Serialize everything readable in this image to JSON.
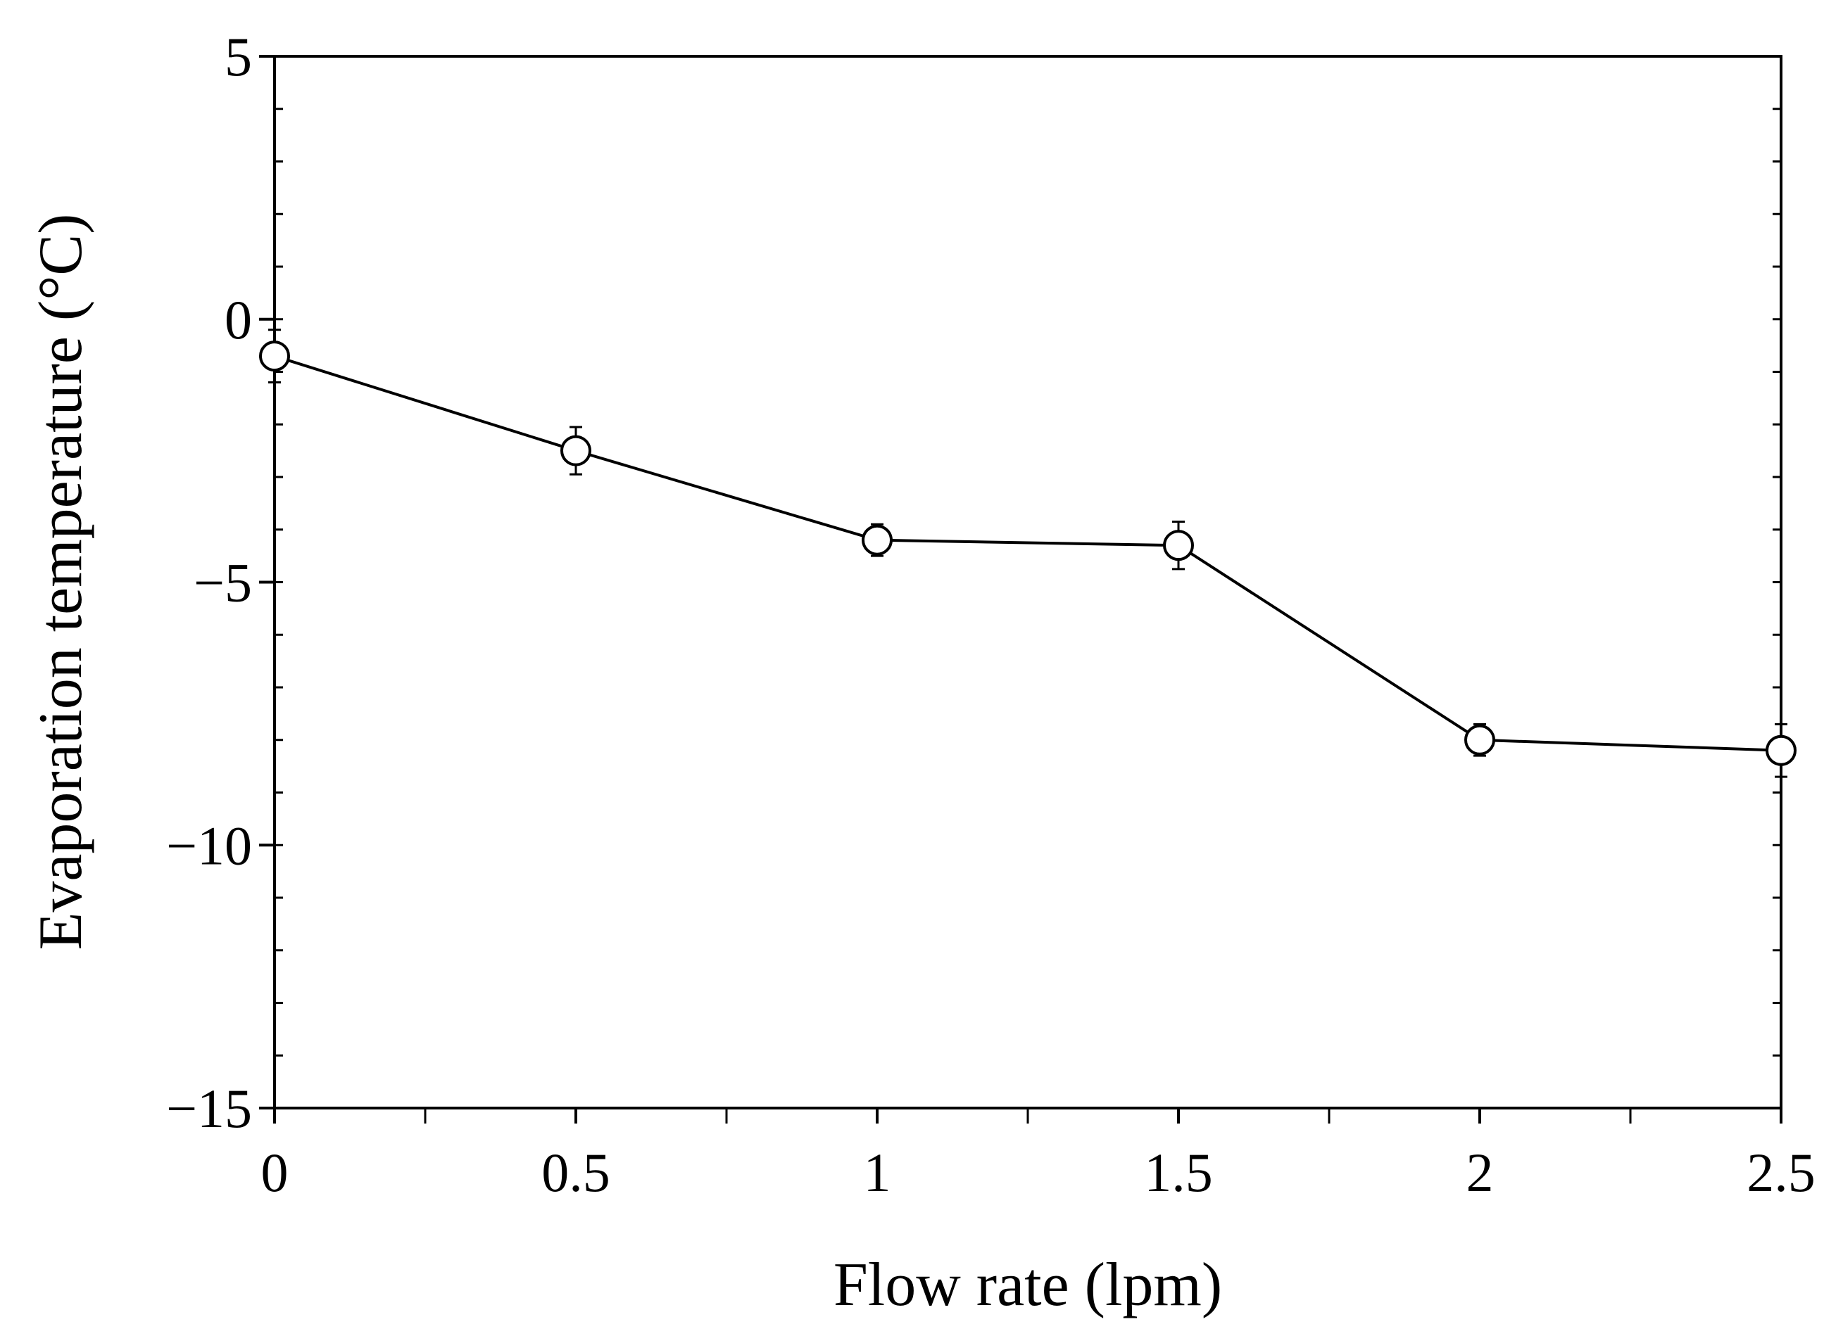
{
  "chart_data": {
    "type": "line",
    "title": "",
    "xlabel": "Flow rate (lpm)",
    "ylabel": "Evaporation temperature (°C)",
    "xlim": [
      0,
      2.5
    ],
    "ylim": [
      -15,
      5
    ],
    "x_ticks": [
      0,
      0.5,
      1,
      1.5,
      2,
      2.5
    ],
    "x_tick_labels": [
      "0",
      "0.5",
      "1",
      "1.5",
      "2",
      "2.5"
    ],
    "x_minor_step": 0.25,
    "y_ticks": [
      5,
      0,
      -5,
      -10,
      -15
    ],
    "y_tick_labels": [
      "5",
      "0",
      "−5",
      "−10",
      "−15"
    ],
    "y_minor_step": 1,
    "grid": false,
    "legend": "none",
    "series": [
      {
        "name": "Evaporation temperature",
        "marker": "open-circle",
        "x": [
          0,
          0.5,
          1,
          1.5,
          2,
          2.5
        ],
        "y": [
          -0.7,
          -2.5,
          -4.2,
          -4.3,
          -8.0,
          -8.2
        ],
        "error": [
          0.5,
          0.45,
          0.3,
          0.45,
          0.3,
          0.5
        ]
      }
    ]
  }
}
